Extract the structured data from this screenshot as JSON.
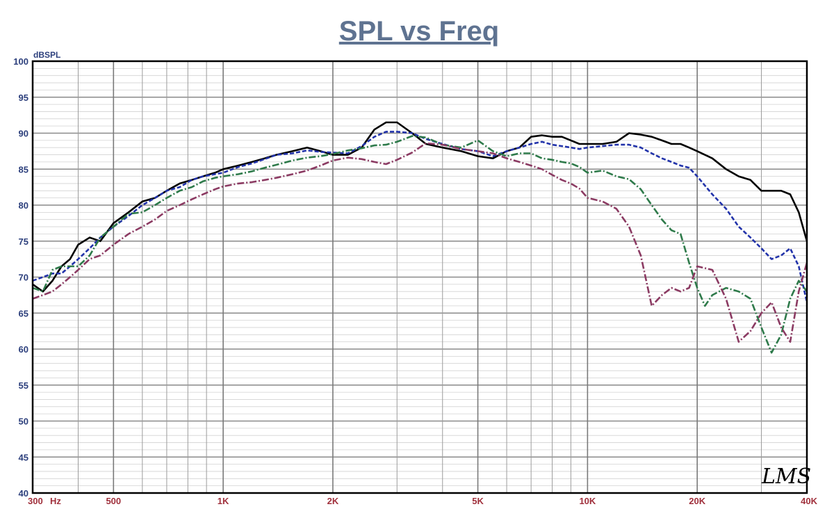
{
  "chart_data": {
    "type": "line",
    "title": "SPL vs Freq",
    "ylabel": "dBSPL",
    "xlabel": "",
    "x_scale": "log",
    "xlim": [
      300,
      40000
    ],
    "ylim": [
      40,
      100
    ],
    "grid": true,
    "y_ticks": [
      "100",
      "95",
      "90",
      "85",
      "80",
      "75",
      "70",
      "65",
      "60",
      "55",
      "50",
      "45",
      "40"
    ],
    "x_ticks": [
      {
        "value": 300,
        "label": "300"
      },
      {
        "value": 500,
        "label": "500"
      },
      {
        "value": 1000,
        "label": "1K"
      },
      {
        "value": 2000,
        "label": "2K"
      },
      {
        "value": 5000,
        "label": "5K"
      },
      {
        "value": 10000,
        "label": "10K"
      },
      {
        "value": 20000,
        "label": "20K"
      },
      {
        "value": 40000,
        "label": "40K"
      }
    ],
    "x_unit": "Hz",
    "watermark": "LMS",
    "series": [
      {
        "color": "#000000",
        "dash": "solid",
        "points": [
          [
            300,
            69
          ],
          [
            320,
            68
          ],
          [
            340,
            69.5
          ],
          [
            360,
            71.5
          ],
          [
            380,
            72.5
          ],
          [
            400,
            74.5
          ],
          [
            430,
            75.5
          ],
          [
            460,
            75
          ],
          [
            500,
            77.5
          ],
          [
            550,
            79
          ],
          [
            600,
            80.5
          ],
          [
            650,
            81
          ],
          [
            700,
            82
          ],
          [
            760,
            83
          ],
          [
            820,
            83.5
          ],
          [
            880,
            84
          ],
          [
            950,
            84.5
          ],
          [
            1000,
            85
          ],
          [
            1100,
            85.5
          ],
          [
            1200,
            86
          ],
          [
            1300,
            86.5
          ],
          [
            1400,
            87
          ],
          [
            1550,
            87.5
          ],
          [
            1700,
            88
          ],
          [
            1850,
            87.5
          ],
          [
            2000,
            87
          ],
          [
            2200,
            87
          ],
          [
            2400,
            88
          ],
          [
            2600,
            90.5
          ],
          [
            2800,
            91.5
          ],
          [
            3000,
            91.5
          ],
          [
            3300,
            90
          ],
          [
            3600,
            88.5
          ],
          [
            4000,
            88
          ],
          [
            4500,
            87.5
          ],
          [
            5000,
            86.8
          ],
          [
            5500,
            86.5
          ],
          [
            6000,
            87.5
          ],
          [
            6500,
            88
          ],
          [
            7000,
            89.5
          ],
          [
            7500,
            89.7
          ],
          [
            8000,
            89.5
          ],
          [
            8500,
            89.5
          ],
          [
            9000,
            89
          ],
          [
            9500,
            88.5
          ],
          [
            10000,
            88.5
          ],
          [
            11000,
            88.5
          ],
          [
            12000,
            88.8
          ],
          [
            13000,
            90
          ],
          [
            14000,
            89.8
          ],
          [
            15000,
            89.5
          ],
          [
            16000,
            89
          ],
          [
            17000,
            88.5
          ],
          [
            18000,
            88.5
          ],
          [
            19000,
            88
          ],
          [
            20000,
            87.5
          ],
          [
            22000,
            86.5
          ],
          [
            24000,
            85
          ],
          [
            26000,
            84
          ],
          [
            28000,
            83.5
          ],
          [
            30000,
            82
          ],
          [
            32000,
            82
          ],
          [
            34000,
            82
          ],
          [
            36000,
            81.5
          ],
          [
            38000,
            79
          ],
          [
            40000,
            75
          ]
        ]
      },
      {
        "color": "#2233aa",
        "dash": "dashed",
        "points": [
          [
            300,
            69.5
          ],
          [
            320,
            70
          ],
          [
            340,
            70.5
          ],
          [
            360,
            70.5
          ],
          [
            380,
            71.5
          ],
          [
            400,
            72.5
          ],
          [
            430,
            74
          ],
          [
            460,
            75.5
          ],
          [
            500,
            77
          ],
          [
            550,
            78.5
          ],
          [
            600,
            80
          ],
          [
            650,
            81
          ],
          [
            700,
            82
          ],
          [
            760,
            82.5
          ],
          [
            820,
            83.5
          ],
          [
            880,
            84
          ],
          [
            950,
            84.3
          ],
          [
            1000,
            84.5
          ],
          [
            1100,
            85.3
          ],
          [
            1200,
            85.8
          ],
          [
            1300,
            86.4
          ],
          [
            1400,
            87
          ],
          [
            1550,
            87.2
          ],
          [
            1700,
            87.6
          ],
          [
            1850,
            87.4
          ],
          [
            2000,
            87.3
          ],
          [
            2200,
            87.2
          ],
          [
            2400,
            88.2
          ],
          [
            2600,
            89.5
          ],
          [
            2800,
            90.2
          ],
          [
            3000,
            90.2
          ],
          [
            3300,
            90
          ],
          [
            3600,
            89.2
          ],
          [
            4000,
            88.5
          ],
          [
            4500,
            87.8
          ],
          [
            5000,
            87.5
          ],
          [
            5500,
            86.8
          ],
          [
            6000,
            87.5
          ],
          [
            6500,
            88
          ],
          [
            7000,
            88.5
          ],
          [
            7500,
            88.8
          ],
          [
            8000,
            88.4
          ],
          [
            8500,
            88.2
          ],
          [
            9000,
            88
          ],
          [
            9500,
            87.8
          ],
          [
            10000,
            88
          ],
          [
            11000,
            88.2
          ],
          [
            12000,
            88.4
          ],
          [
            13000,
            88.4
          ],
          [
            14000,
            88
          ],
          [
            15000,
            87.2
          ],
          [
            16000,
            86.5
          ],
          [
            17000,
            86
          ],
          [
            18000,
            85.5
          ],
          [
            19000,
            85.2
          ],
          [
            20000,
            84
          ],
          [
            22000,
            81.5
          ],
          [
            24000,
            79.5
          ],
          [
            26000,
            77
          ],
          [
            28000,
            75.5
          ],
          [
            30000,
            74
          ],
          [
            32000,
            72.5
          ],
          [
            34000,
            73
          ],
          [
            36000,
            74
          ],
          [
            38000,
            71.5
          ],
          [
            40000,
            66.5
          ]
        ]
      },
      {
        "color": "#2e7a4a",
        "dash": "dash-dot",
        "points": [
          [
            300,
            68.5
          ],
          [
            320,
            68
          ],
          [
            340,
            71
          ],
          [
            360,
            71.5
          ],
          [
            380,
            71.5
          ],
          [
            400,
            71.5
          ],
          [
            430,
            73
          ],
          [
            460,
            75.5
          ],
          [
            500,
            77
          ],
          [
            550,
            78.8
          ],
          [
            600,
            79
          ],
          [
            650,
            80
          ],
          [
            700,
            81
          ],
          [
            760,
            82
          ],
          [
            820,
            82.5
          ],
          [
            880,
            83.3
          ],
          [
            950,
            83.8
          ],
          [
            1000,
            84
          ],
          [
            1100,
            84.3
          ],
          [
            1200,
            84.7
          ],
          [
            1300,
            85.2
          ],
          [
            1400,
            85.6
          ],
          [
            1550,
            86.2
          ],
          [
            1700,
            86.6
          ],
          [
            1850,
            86.8
          ],
          [
            2000,
            87.1
          ],
          [
            2200,
            87.6
          ],
          [
            2400,
            87.9
          ],
          [
            2600,
            88.3
          ],
          [
            2800,
            88.4
          ],
          [
            3000,
            88.8
          ],
          [
            3300,
            89.6
          ],
          [
            3600,
            89.4
          ],
          [
            4000,
            88.4
          ],
          [
            4500,
            88
          ],
          [
            5000,
            89
          ],
          [
            5500,
            87.5
          ],
          [
            6000,
            86.8
          ],
          [
            6500,
            87.2
          ],
          [
            7000,
            87.2
          ],
          [
            7500,
            86.5
          ],
          [
            8000,
            86.3
          ],
          [
            8500,
            86
          ],
          [
            9000,
            85.8
          ],
          [
            9500,
            85.3
          ],
          [
            10000,
            84.5
          ],
          [
            11000,
            84.8
          ],
          [
            12000,
            84
          ],
          [
            13000,
            83.6
          ],
          [
            14000,
            82.2
          ],
          [
            15000,
            80
          ],
          [
            16000,
            78
          ],
          [
            17000,
            76.5
          ],
          [
            18000,
            76
          ],
          [
            19000,
            72
          ],
          [
            20000,
            68.5
          ],
          [
            21000,
            66
          ],
          [
            22000,
            67.5
          ],
          [
            24000,
            68.5
          ],
          [
            26000,
            68
          ],
          [
            28000,
            67
          ],
          [
            30000,
            63
          ],
          [
            32000,
            59.5
          ],
          [
            34000,
            62
          ],
          [
            36000,
            67
          ],
          [
            38000,
            69.5
          ],
          [
            40000,
            68
          ]
        ]
      },
      {
        "color": "#8b3a62",
        "dash": "dash-dot",
        "points": [
          [
            300,
            67
          ],
          [
            320,
            67.5
          ],
          [
            340,
            68
          ],
          [
            360,
            69
          ],
          [
            380,
            70
          ],
          [
            400,
            71
          ],
          [
            430,
            72.5
          ],
          [
            460,
            73
          ],
          [
            500,
            74.5
          ],
          [
            550,
            76
          ],
          [
            600,
            77
          ],
          [
            650,
            78
          ],
          [
            700,
            79.2
          ],
          [
            760,
            80
          ],
          [
            820,
            80.8
          ],
          [
            880,
            81.5
          ],
          [
            950,
            82.2
          ],
          [
            1000,
            82.6
          ],
          [
            1100,
            83
          ],
          [
            1200,
            83.2
          ],
          [
            1300,
            83.5
          ],
          [
            1400,
            83.8
          ],
          [
            1550,
            84.3
          ],
          [
            1700,
            84.8
          ],
          [
            1850,
            85.5
          ],
          [
            2000,
            86.2
          ],
          [
            2200,
            86.6
          ],
          [
            2400,
            86.4
          ],
          [
            2600,
            86
          ],
          [
            2800,
            85.7
          ],
          [
            3000,
            86.3
          ],
          [
            3300,
            87.3
          ],
          [
            3600,
            88.6
          ],
          [
            4000,
            88.4
          ],
          [
            4500,
            87.8
          ],
          [
            5000,
            87.5
          ],
          [
            5500,
            87.2
          ],
          [
            6000,
            86.5
          ],
          [
            6500,
            86
          ],
          [
            7000,
            85.5
          ],
          [
            7500,
            85
          ],
          [
            8000,
            84.2
          ],
          [
            8500,
            83.5
          ],
          [
            9000,
            83
          ],
          [
            9500,
            82.3
          ],
          [
            10000,
            81
          ],
          [
            11000,
            80.5
          ],
          [
            12000,
            79.5
          ],
          [
            13000,
            77
          ],
          [
            14000,
            73
          ],
          [
            15000,
            66
          ],
          [
            16000,
            67.5
          ],
          [
            17000,
            68.5
          ],
          [
            18000,
            68
          ],
          [
            19000,
            68.5
          ],
          [
            20000,
            71.5
          ],
          [
            22000,
            71
          ],
          [
            24000,
            67
          ],
          [
            26000,
            61
          ],
          [
            28000,
            62.5
          ],
          [
            30000,
            65
          ],
          [
            32000,
            66.5
          ],
          [
            34000,
            63
          ],
          [
            36000,
            61
          ],
          [
            38000,
            68
          ],
          [
            40000,
            72
          ]
        ]
      }
    ]
  }
}
